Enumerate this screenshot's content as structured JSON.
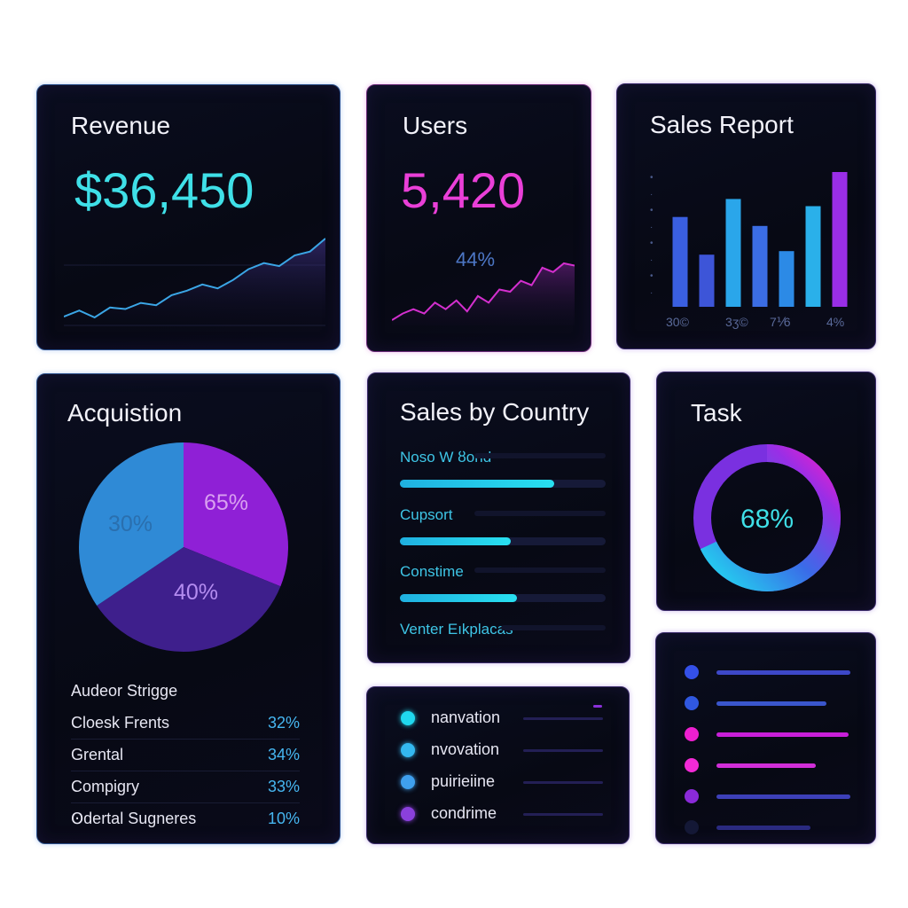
{
  "revenue": {
    "title": "Revenue",
    "value": "$36,450",
    "trend": [
      10,
      18,
      9,
      22,
      20,
      28,
      25,
      38,
      44,
      52,
      47,
      58,
      72,
      80,
      76,
      90,
      95,
      112
    ]
  },
  "users": {
    "title": "Users",
    "value": "5,420",
    "change": "44%",
    "trend": [
      12,
      18,
      22,
      18,
      28,
      22,
      30,
      20,
      34,
      28,
      40,
      38,
      48,
      44,
      60,
      56,
      64,
      62
    ]
  },
  "sales_report": {
    "title": "Sales Report",
    "labels": [
      "30©",
      "3ʒ©",
      "7⅟6",
      "4%"
    ],
    "ytick_marks": [
      "•",
      "·",
      "•",
      "·",
      "•",
      "·",
      "•",
      "·"
    ],
    "bars": [
      100,
      58,
      120,
      90,
      62,
      112,
      150
    ],
    "bar_colors": [
      "#3a5fe0",
      "#3d55d8",
      "#2aa6ea",
      "#3b6de4",
      "#2c8ae6",
      "#2ab0ea",
      "#9a2ee6"
    ]
  },
  "acquisition": {
    "title": "Acquistion",
    "slices": [
      {
        "label": "65%",
        "value": 65,
        "color": "#8f20d6"
      },
      {
        "label": "40%",
        "value": 40,
        "color": "#3e1f8c"
      },
      {
        "label": "30%",
        "value": 30,
        "color": "#2f8ad6"
      }
    ],
    "table_header": "Audeor Strigge",
    "rows": [
      {
        "name": "Cloesk Frents",
        "pct": "32%"
      },
      {
        "name": "Grental",
        "pct": "34%"
      },
      {
        "name": "Compigry",
        "pct": "33%"
      },
      {
        "name": "Ꙩdertal Sugneres",
        "pct": "10%"
      }
    ]
  },
  "sales_by_country": {
    "title": "Sales by Country",
    "items": [
      {
        "label": "Noso W ȣond",
        "fill": 0.75
      },
      {
        "label": "Cupsort",
        "fill": 0.54
      },
      {
        "label": "Constime",
        "fill": 0.57
      },
      {
        "label": "Venter Eıkplacas",
        "fill": 0.0
      }
    ]
  },
  "task": {
    "title": "Task",
    "value": "68%",
    "progress": 0.68
  },
  "legend": {
    "items": [
      {
        "name": "nanvation",
        "color": "#20d8ee"
      },
      {
        "name": "nvovation",
        "color": "#34b8f0"
      },
      {
        "name": "puirieiine",
        "color": "#3fa0ee"
      },
      {
        "name": "condrime",
        "color": "#8a40dc"
      }
    ]
  },
  "status_list": {
    "items": [
      {
        "dot": "#3450e8",
        "bar": "#3d48c8",
        "fill": 0.84
      },
      {
        "dot": "#3058e0",
        "bar": "#3a56cc",
        "fill": 0.69
      },
      {
        "dot": "#ee1fd0",
        "bar": "#c81fd8",
        "fill": 0.83
      },
      {
        "dot": "#f22ad6",
        "bar": "#d12ed8",
        "fill": 0.62
      },
      {
        "dot": "#8a2ad8",
        "bar": "#3d40b8",
        "fill": 0.84
      },
      {
        "dot": "#141836",
        "bar": "#2a2a80",
        "fill": 0.59
      }
    ]
  }
}
